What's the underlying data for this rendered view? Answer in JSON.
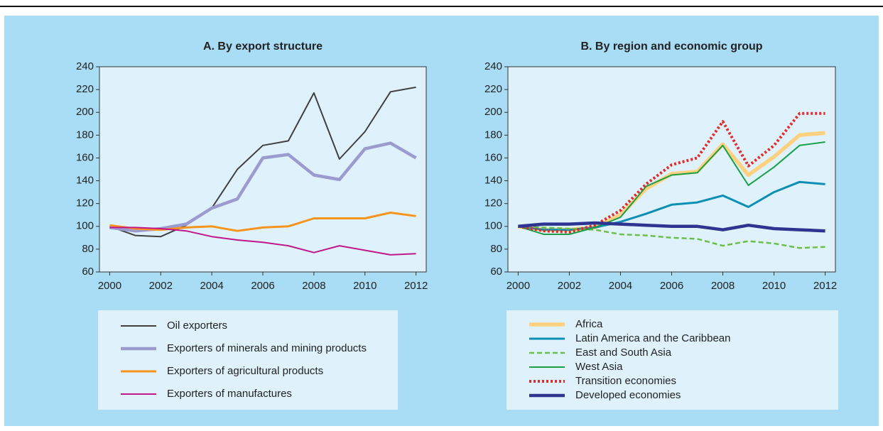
{
  "chart_data": [
    {
      "type": "line",
      "title": "A. By export structure",
      "x": [
        2000,
        2001,
        2002,
        2003,
        2004,
        2005,
        2006,
        2007,
        2008,
        2009,
        2010,
        2011,
        2012
      ],
      "xlim": [
        1999.6,
        2012.4
      ],
      "xticks": [
        2000,
        2002,
        2004,
        2006,
        2008,
        2010,
        2012
      ],
      "ylim": [
        60,
        240
      ],
      "yticks": [
        60,
        80,
        100,
        120,
        140,
        160,
        180,
        200,
        220,
        240
      ],
      "series": [
        {
          "name": "Oil exporters",
          "color": "#404040",
          "style": "solid",
          "values": [
            100,
            92,
            91,
            101,
            116,
            150,
            171,
            175,
            217,
            159,
            183,
            218,
            222
          ]
        },
        {
          "name": "Exporters of minerals and mining products",
          "color": "#9b9bd0",
          "style": "thick",
          "values": [
            99,
            96,
            98,
            102,
            116,
            124,
            160,
            163,
            145,
            141,
            168,
            173,
            160
          ]
        },
        {
          "name": "Exporters of agricultural products",
          "color": "#f7941d",
          "style": "medium",
          "values": [
            101,
            98,
            97,
            99,
            100,
            96,
            99,
            100,
            107,
            107,
            107,
            112,
            109
          ]
        },
        {
          "name": "Exporters of manufactures",
          "color": "#c2168b",
          "style": "solid",
          "values": [
            99,
            99,
            98,
            96,
            91,
            88,
            86,
            83,
            77,
            83,
            79,
            75,
            76
          ]
        }
      ]
    },
    {
      "type": "line",
      "title": "B. By region and economic group",
      "x": [
        2000,
        2001,
        2002,
        2003,
        2004,
        2005,
        2006,
        2007,
        2008,
        2009,
        2010,
        2011,
        2012
      ],
      "xlim": [
        1999.6,
        2012.4
      ],
      "xticks": [
        2000,
        2002,
        2004,
        2006,
        2008,
        2010,
        2012
      ],
      "ylim": [
        60,
        240
      ],
      "yticks": [
        60,
        80,
        100,
        120,
        140,
        160,
        180,
        200,
        220,
        240
      ],
      "series": [
        {
          "name": "Africa",
          "color": "#fdd17f",
          "style": "heavy",
          "values": [
            100,
            97,
            97,
            99,
            110,
            133,
            146,
            148,
            172,
            145,
            161,
            180,
            182
          ]
        },
        {
          "name": "Latin America and the Caribbean",
          "color": "#0d8fb5",
          "style": "medium",
          "values": [
            100,
            97,
            97,
            99,
            104,
            111,
            119,
            121,
            127,
            117,
            130,
            139,
            137
          ]
        },
        {
          "name": "East and South Asia",
          "color": "#6cbf4a",
          "style": "dashed",
          "values": [
            100,
            99,
            98,
            97,
            93,
            92,
            90,
            89,
            83,
            87,
            85,
            81,
            82
          ]
        },
        {
          "name": "West Asia",
          "color": "#19a049",
          "style": "solid",
          "values": [
            100,
            93,
            93,
            99,
            108,
            135,
            145,
            147,
            171,
            136,
            152,
            171,
            174
          ]
        },
        {
          "name": "Transition economies",
          "color": "#e32b2b",
          "style": "dotted",
          "values": [
            100,
            96,
            95,
            101,
            114,
            137,
            154,
            160,
            192,
            153,
            171,
            199,
            199
          ]
        },
        {
          "name": "Developed economies",
          "color": "#2e3591",
          "style": "thick",
          "values": [
            100,
            102,
            102,
            103,
            102,
            101,
            100,
            100,
            97,
            101,
            98,
            97,
            96
          ]
        }
      ]
    }
  ]
}
